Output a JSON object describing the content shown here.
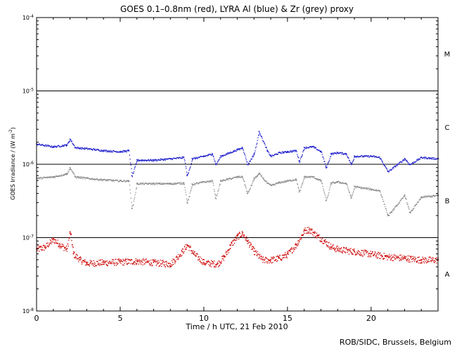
{
  "chart_data": {
    "type": "scatter",
    "title": "GOES 0.1–0.8nm (red), LYRA Al (blue) & Zr (grey) proxy",
    "xlabel": "Time / h UTC, 21 Feb 2010",
    "ylabel_main": "GOES Irradiance / (W m",
    "ylabel_exp": "-2",
    "ylabel_close": ")",
    "xlim": [
      0,
      24
    ],
    "ylim": [
      1e-08,
      0.0001
    ],
    "yscale": "log",
    "x_ticks": [
      0,
      5,
      10,
      15,
      20
    ],
    "x_tick_labels": [
      "0",
      "5",
      "10",
      "15",
      "20"
    ],
    "y_ticks": [
      1e-08,
      1e-07,
      1e-06,
      1e-05,
      0.0001
    ],
    "y_tick_labels": [
      {
        "base": "10",
        "exp": "-8"
      },
      {
        "base": "10",
        "exp": "-7"
      },
      {
        "base": "10",
        "exp": "-6"
      },
      {
        "base": "10",
        "exp": "-5"
      },
      {
        "base": "10",
        "exp": "-4"
      }
    ],
    "flare_lines": [
      1e-07,
      1e-06,
      1e-05
    ],
    "flare_classes": [
      {
        "label": "A",
        "y": 3.2e-08
      },
      {
        "label": "B",
        "y": 3.2e-07
      },
      {
        "label": "C",
        "y": 3.2e-06
      },
      {
        "label": "M",
        "y": 3.2e-05
      }
    ],
    "series": [
      {
        "name": "GOES 0.1–0.8nm",
        "color": "#cc0000",
        "x": [
          0.0,
          0.5,
          1.0,
          1.4,
          1.8,
          2.0,
          2.2,
          2.6,
          3.0,
          4.0,
          5.0,
          6.0,
          7.0,
          8.0,
          8.7,
          9.0,
          9.4,
          10.0,
          10.8,
          11.2,
          11.6,
          12.0,
          12.3,
          12.6,
          13.0,
          13.5,
          14.0,
          14.5,
          15.0,
          15.5,
          16.0,
          16.3,
          16.8,
          17.2,
          17.6,
          18.0,
          19.0,
          20.0,
          21.0,
          22.0,
          23.0,
          24.0
        ],
        "y": [
          7e-08,
          7.5e-08,
          9.5e-08,
          8e-08,
          7e-08,
          1.2e-07,
          6e-08,
          5e-08,
          4.5e-08,
          4.6e-08,
          4.7e-08,
          4.8e-08,
          4.6e-08,
          4.4e-08,
          6.5e-08,
          8e-08,
          6e-08,
          4.6e-08,
          4.4e-08,
          5.5e-08,
          8e-08,
          1.05e-07,
          1.15e-07,
          9e-08,
          6.5e-08,
          5e-08,
          5e-08,
          5.3e-08,
          6e-08,
          8e-08,
          1.25e-07,
          1.3e-07,
          1.05e-07,
          9e-08,
          7.5e-08,
          7e-08,
          6.5e-08,
          6e-08,
          5.5e-08,
          5.3e-08,
          5e-08,
          5e-08
        ]
      },
      {
        "name": "LYRA Al",
        "color": "#1a1acc",
        "x": [
          0.0,
          1.0,
          1.8,
          2.0,
          2.3,
          3.0,
          4.0,
          5.0,
          5.5,
          5.7,
          6.0,
          7.0,
          8.0,
          8.8,
          9.0,
          9.3,
          10.0,
          10.5,
          10.7,
          11.0,
          12.0,
          12.3,
          12.6,
          13.0,
          13.3,
          13.8,
          14.0,
          14.5,
          15.0,
          15.5,
          15.7,
          16.0,
          16.5,
          17.0,
          17.3,
          17.6,
          18.0,
          18.5,
          18.8,
          19.0,
          20.0,
          20.5,
          21.0,
          22.0,
          22.3,
          23.0,
          24.0
        ],
        "y": [
          1.9e-06,
          1.75e-06,
          1.85e-06,
          2.2e-06,
          1.7e-06,
          1.65e-06,
          1.55e-06,
          1.5e-06,
          1.55e-06,
          7e-07,
          1.15e-06,
          1.15e-06,
          1.2e-06,
          1.25e-06,
          7e-07,
          1.2e-06,
          1.3e-06,
          1.4e-06,
          1e-06,
          1.3e-06,
          1.6e-06,
          1.7e-06,
          1e-06,
          1.4e-06,
          2.8e-06,
          1.5e-06,
          1.3e-06,
          1.45e-06,
          1.5e-06,
          1.55e-06,
          1.1e-06,
          1.7e-06,
          1.75e-06,
          1.5e-06,
          9e-07,
          1.4e-06,
          1.45e-06,
          1.4e-06,
          1e-06,
          1.3e-06,
          1.3e-06,
          1.25e-06,
          8e-07,
          1.2e-06,
          1e-06,
          1.25e-06,
          1.2e-06
        ]
      },
      {
        "name": "LYRA Zr",
        "color": "#888888",
        "x": [
          0.0,
          1.0,
          1.8,
          2.0,
          2.3,
          3.0,
          4.0,
          5.0,
          5.5,
          5.7,
          6.0,
          7.0,
          8.0,
          8.8,
          9.0,
          9.3,
          10.0,
          10.5,
          10.7,
          11.0,
          12.0,
          12.3,
          12.6,
          13.0,
          13.3,
          13.8,
          14.0,
          14.5,
          15.0,
          15.5,
          15.7,
          16.0,
          16.5,
          17.0,
          17.3,
          17.6,
          18.0,
          18.5,
          18.8,
          19.0,
          20.0,
          20.5,
          21.0,
          22.0,
          22.3,
          23.0,
          24.0
        ],
        "y": [
          6.5e-07,
          6.8e-07,
          7.5e-07,
          9e-07,
          6.8e-07,
          6.5e-07,
          6.2e-07,
          6e-07,
          6e-07,
          2.5e-07,
          5.5e-07,
          5.5e-07,
          5.5e-07,
          5.6e-07,
          3e-07,
          5.4e-07,
          5.8e-07,
          6e-07,
          3.5e-07,
          6e-07,
          6.8e-07,
          6.8e-07,
          4e-07,
          6.5e-07,
          7.5e-07,
          5.5e-07,
          5.2e-07,
          5.7e-07,
          6e-07,
          6.3e-07,
          4.2e-07,
          6.8e-07,
          6.8e-07,
          6e-07,
          3.2e-07,
          5.6e-07,
          5.8e-07,
          5.5e-07,
          3.5e-07,
          5e-07,
          4.6e-07,
          4.4e-07,
          2e-07,
          3.8e-07,
          2.2e-07,
          3.6e-07,
          3.8e-07
        ]
      }
    ]
  },
  "credit": "ROB/SIDC, Brussels, Belgium"
}
